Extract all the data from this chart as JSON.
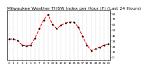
{
  "title": "Milwaukee Weather THSW Index per Hour (F) (Last 24 Hours)",
  "hours": [
    0,
    1,
    2,
    3,
    4,
    5,
    6,
    7,
    8,
    9,
    10,
    11,
    12,
    13,
    14,
    15,
    16,
    17,
    18,
    19,
    20,
    21,
    22,
    23
  ],
  "values": [
    33,
    33,
    30,
    22,
    20,
    22,
    35,
    52,
    68,
    78,
    60,
    52,
    58,
    62,
    64,
    64,
    55,
    38,
    22,
    12,
    15,
    18,
    22,
    24
  ],
  "line_color": "#ff0000",
  "marker_color": "#000000",
  "background_color": "#ffffff",
  "grid_color": "#888888",
  "title_color": "#000000",
  "ylim_min": -5,
  "ylim_max": 85,
  "xlim_min": -0.5,
  "xlim_max": 23.5,
  "ytick_values": [
    0,
    10,
    20,
    30,
    40,
    50,
    60,
    70,
    80
  ],
  "xtick_values": [
    0,
    1,
    2,
    3,
    4,
    5,
    6,
    7,
    8,
    9,
    10,
    11,
    12,
    13,
    14,
    15,
    16,
    17,
    18,
    19,
    20,
    21,
    22,
    23
  ],
  "title_fontsize": 4.5,
  "tick_fontsize": 3.0,
  "linewidth": 0.8,
  "markersize": 1.3
}
